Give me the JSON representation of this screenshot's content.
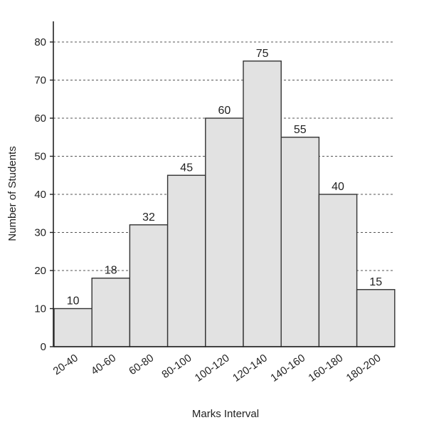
{
  "chart_data": {
    "type": "bar",
    "title": "",
    "xlabel": "Marks Interval",
    "ylabel": "Number of Students",
    "categories": [
      "20-40",
      "40-60",
      "60-80",
      "80-100",
      "100-120",
      "120-140",
      "140-160",
      "160-180",
      "180-200"
    ],
    "values": [
      10,
      18,
      32,
      45,
      60,
      75,
      55,
      40,
      15
    ],
    "data_labels": [
      "10",
      "18",
      "32",
      "45",
      "60",
      "75",
      "55",
      "40",
      "15"
    ],
    "ylim": [
      0,
      90
    ],
    "yticks": [
      0,
      10,
      20,
      30,
      40,
      50,
      60,
      70,
      80
    ],
    "ytick_labels": [
      "0",
      "10",
      "20",
      "30",
      "40",
      "50",
      "60",
      "70",
      "80"
    ],
    "grid": "horizontal dashed",
    "legend": "none",
    "colors": {
      "bar_fill": "#e2e2e2",
      "bar_stroke": "#333333",
      "grid": "#555555",
      "axis": "#222222"
    }
  }
}
